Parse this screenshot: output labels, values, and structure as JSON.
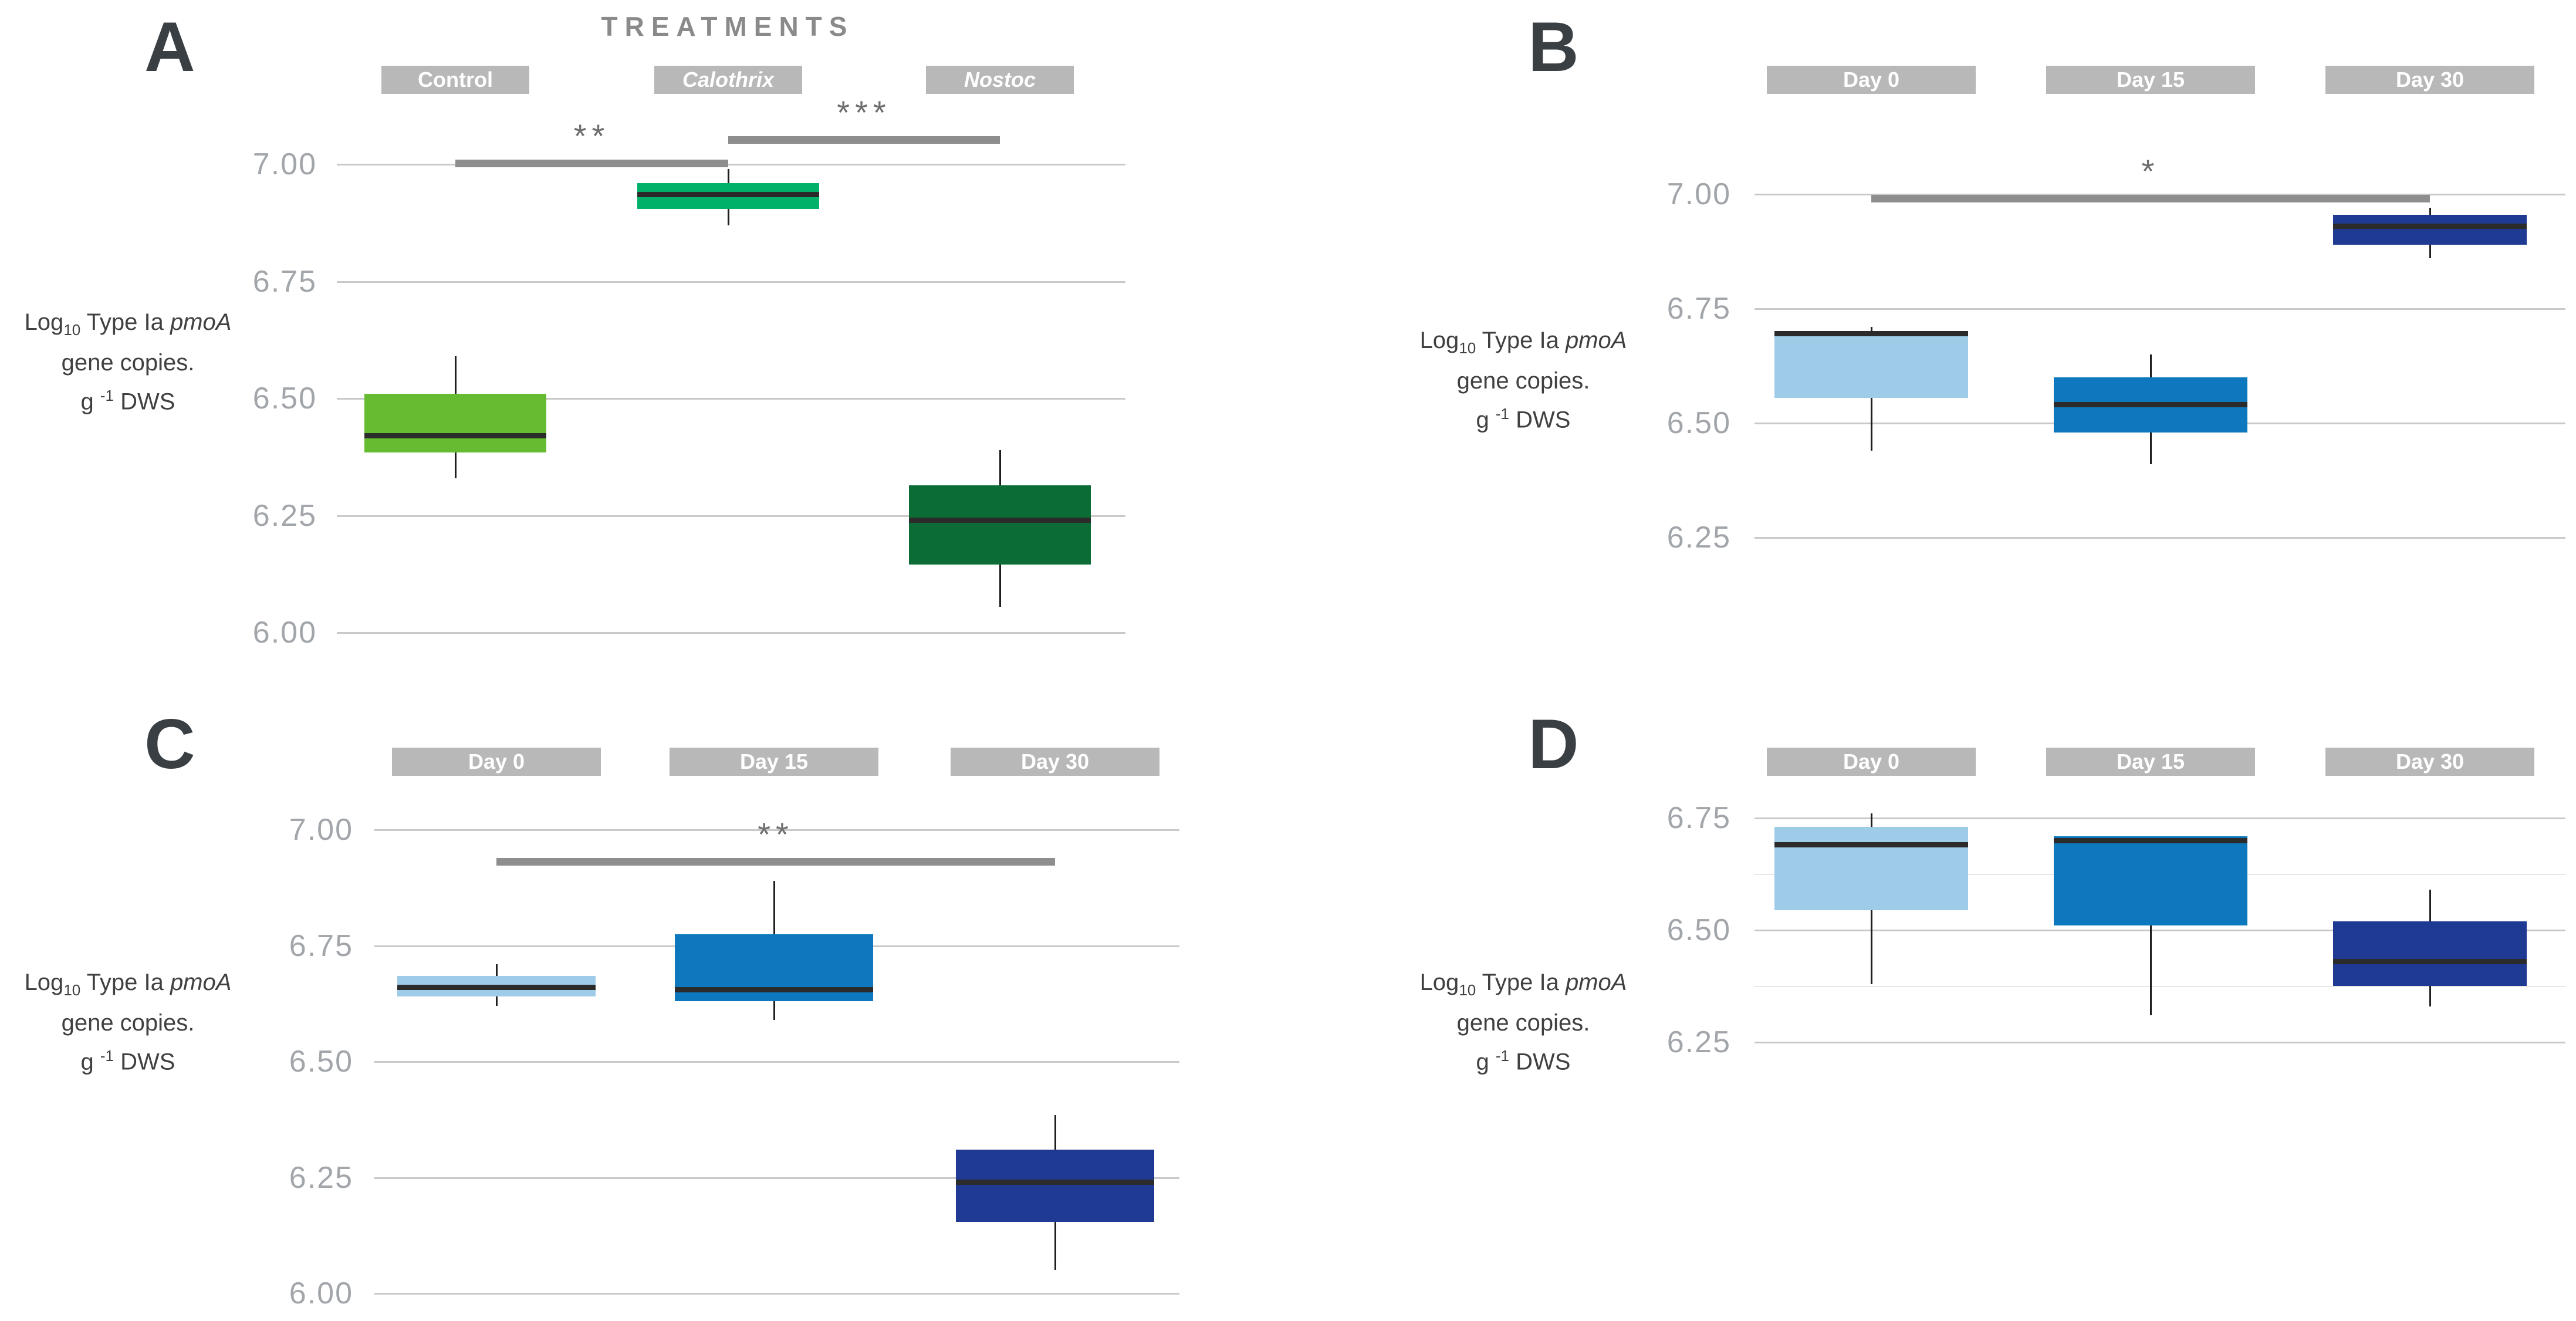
{
  "figure_title": "TREATMENTS",
  "colors": {
    "control_green": "#65BC30",
    "calothrix_emerald": "#00B269",
    "nostoc_dark_green": "#0B6C36",
    "day0_light_blue": "#9ECBE8",
    "day15_blue": "#0D78BD",
    "day30_navy": "#1E3A93",
    "median_line": "#2B2B2B",
    "whisker": "#1F1F1F",
    "gridline": "#C9C9C9",
    "minor_gridline": "#E7E7E7",
    "tick_label": "#A2A6AA",
    "header_bg": "#B8B8B8",
    "header_text": "#FFFFFF",
    "title_text": "#8A8A8A",
    "panel_letter": "#3A3F44",
    "sig_bar": "#8E8E8E",
    "sig_text": "#6E6E6E",
    "axis_label_text": "#404040"
  },
  "chart_data": [
    {
      "panel": "A",
      "type": "box",
      "title": "TREATMENTS",
      "ylabel_lines": [
        "Log10 Type Ia pmoA",
        "gene copies.",
        "g -1 DWS"
      ],
      "yticks": [
        "7.00",
        "6.75",
        "6.50",
        "6.25",
        "6.00"
      ],
      "ylim": [
        6.0,
        7.1
      ],
      "grid": true,
      "categories": [
        "Control",
        "Calothrix",
        "Nostoc"
      ],
      "categories_italic": [
        false,
        true,
        true
      ],
      "series": [
        {
          "category": "Control",
          "color": "control_green",
          "whisker_low": 6.33,
          "q1": 6.385,
          "median": 6.42,
          "q3": 6.51,
          "whisker_high": 6.59
        },
        {
          "category": "Calothrix",
          "color": "calothrix_emerald",
          "whisker_low": 6.87,
          "q1": 6.905,
          "median": 6.935,
          "q3": 6.96,
          "whisker_high": 6.99
        },
        {
          "category": "Nostoc",
          "color": "nostoc_dark_green",
          "whisker_low": 6.055,
          "q1": 6.145,
          "median": 6.24,
          "q3": 6.315,
          "whisker_high": 6.39
        }
      ],
      "significance": [
        {
          "label": "**",
          "from": 0,
          "to": 1
        },
        {
          "label": "***",
          "from": 1,
          "to": 2
        }
      ]
    },
    {
      "panel": "B",
      "type": "box",
      "title": "",
      "ylabel_lines": [
        "Log10 Type Ia pmoA",
        "gene copies.",
        "g -1 DWS"
      ],
      "yticks": [
        "7.00",
        "6.75",
        "6.50",
        "6.25"
      ],
      "ylim": [
        6.2,
        7.05
      ],
      "grid": true,
      "categories": [
        "Day 0",
        "Day 15",
        "Day 30"
      ],
      "categories_italic": [
        false,
        false,
        false
      ],
      "series": [
        {
          "category": "Day 0",
          "color": "day0_light_blue",
          "whisker_low": 6.44,
          "q1": 6.555,
          "median": 6.695,
          "q3": 6.7,
          "whisker_high": 6.71
        },
        {
          "category": "Day 15",
          "color": "day15_blue",
          "whisker_low": 6.41,
          "q1": 6.48,
          "median": 6.54,
          "q3": 6.6,
          "whisker_high": 6.65
        },
        {
          "category": "Day 30",
          "color": "day30_navy",
          "whisker_low": 6.86,
          "q1": 6.89,
          "median": 6.93,
          "q3": 6.955,
          "whisker_high": 6.97
        }
      ],
      "significance": [
        {
          "label": "*",
          "from": 0,
          "to": 2
        }
      ]
    },
    {
      "panel": "C",
      "type": "box",
      "title": "",
      "ylabel_lines": [
        "Log10 Type Ia pmoA",
        "gene copies.",
        "g -1 DWS"
      ],
      "yticks": [
        "7.00",
        "6.75",
        "6.50",
        "6.25",
        "6.00"
      ],
      "ylim": [
        6.0,
        7.05
      ],
      "grid": true,
      "categories": [
        "Day 0",
        "Day 15",
        "Day 30"
      ],
      "categories_italic": [
        false,
        false,
        false
      ],
      "series": [
        {
          "category": "Day 0",
          "color": "day0_light_blue",
          "whisker_low": 6.62,
          "q1": 6.64,
          "median": 6.66,
          "q3": 6.685,
          "whisker_high": 6.71
        },
        {
          "category": "Day 15",
          "color": "day15_blue",
          "whisker_low": 6.59,
          "q1": 6.63,
          "median": 6.655,
          "q3": 6.775,
          "whisker_high": 6.89
        },
        {
          "category": "Day 30",
          "color": "day30_navy",
          "whisker_low": 6.05,
          "q1": 6.155,
          "median": 6.24,
          "q3": 6.31,
          "whisker_high": 6.385
        }
      ],
      "significance": [
        {
          "label": "**",
          "from": 0,
          "to": 2
        }
      ]
    },
    {
      "panel": "D",
      "type": "box",
      "title": "",
      "ylabel_lines": [
        "Log10 Type Ia pmoA",
        "gene copies.",
        "g -1 DWS"
      ],
      "yticks": [
        "6.75",
        "6.50",
        "6.25"
      ],
      "ylim": [
        6.2,
        6.85
      ],
      "grid": true,
      "categories": [
        "Day 0",
        "Day 15",
        "Day 30"
      ],
      "categories_italic": [
        false,
        false,
        false
      ],
      "series": [
        {
          "category": "Day 0",
          "color": "day0_light_blue",
          "whisker_low": 6.38,
          "q1": 6.545,
          "median": 6.69,
          "q3": 6.73,
          "whisker_high": 6.76
        },
        {
          "category": "Day 15",
          "color": "day15_blue",
          "whisker_low": 6.31,
          "q1": 6.51,
          "median": 6.7,
          "q3": 6.71,
          "whisker_high": 6.71
        },
        {
          "category": "Day 30",
          "color": "day30_navy",
          "whisker_low": 6.33,
          "q1": 6.375,
          "median": 6.43,
          "q3": 6.52,
          "whisker_high": 6.59
        }
      ],
      "significance": []
    }
  ]
}
